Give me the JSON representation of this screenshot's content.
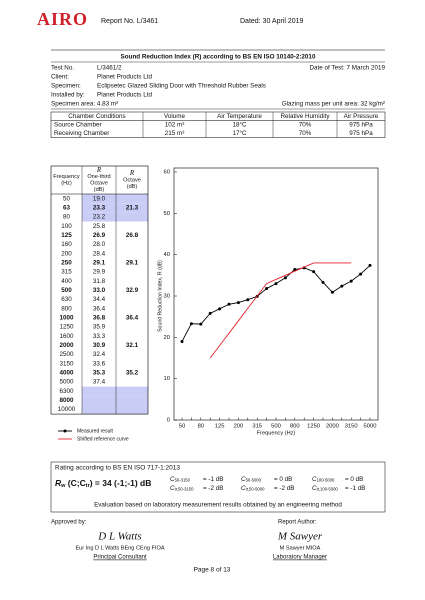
{
  "header": {
    "logo": "AIRO",
    "report_no": "Report No. L/3461",
    "dated": "Dated: 30 April 2019"
  },
  "title": "Sound Reduction Index (R) according to BS EN ISO 10140-2:2010",
  "info": {
    "test_no_label": "Test No.",
    "test_no": "L/3461/2",
    "date_of_test": "Date of Test: 7 March 2019",
    "client_label": "Client:",
    "client": "Planet Products Ltd",
    "specimen_label": "Specimen:",
    "specimen": "Eclipsetec Glazed Sliding Door with Threshold Rubber Seals",
    "installed_label": "Installed by:",
    "installed": "Planet Products Ltd",
    "area": "Specimen area: 4.83 m²",
    "mass": "Glazing mass per unit area: 32 kg/m²"
  },
  "chamber_table": {
    "headers": [
      "Chamber Conditions",
      "Volume",
      "Air Temperature",
      "Relative Humidity",
      "Air Pressure"
    ],
    "rows": [
      [
        "Source Chamber",
        "102 m³",
        "18°C",
        "70%",
        "975 hPa"
      ],
      [
        "Receiving Chamber",
        "215 m³",
        "17°C",
        "70%",
        "975 hPa"
      ]
    ]
  },
  "freq_table": {
    "headers": [
      [
        "Frequency",
        "(Hz)"
      ],
      [
        "R",
        "One-third",
        "Octave",
        "(dB)"
      ],
      [
        "R",
        "Octave",
        "(dB)"
      ]
    ],
    "rows": [
      [
        "50",
        "19.0",
        null
      ],
      [
        "63",
        "23.3",
        "21.3"
      ],
      [
        "80",
        "23.2",
        null
      ],
      [
        "100",
        "25.8",
        null
      ],
      [
        "125",
        "26.9",
        "26.8"
      ],
      [
        "160",
        "28.0",
        null
      ],
      [
        "200",
        "28.4",
        null
      ],
      [
        "250",
        "29.1",
        "29.1"
      ],
      [
        "315",
        "29.9",
        null
      ],
      [
        "400",
        "31.8",
        null
      ],
      [
        "500",
        "33.0",
        "32.9"
      ],
      [
        "630",
        "34.4",
        null
      ],
      [
        "800",
        "36.4",
        null
      ],
      [
        "1000",
        "36.8",
        "36.4"
      ],
      [
        "1250",
        "35.9",
        null
      ],
      [
        "1600",
        "33.3",
        null
      ],
      [
        "2000",
        "30.9",
        "32.1"
      ],
      [
        "2500",
        "32.4",
        null
      ],
      [
        "3150",
        "33.6",
        null
      ],
      [
        "4000",
        "35.3",
        "35.2"
      ],
      [
        "5000",
        "37.4",
        null
      ],
      [
        "6300",
        null,
        null
      ],
      [
        "8000",
        null,
        null
      ],
      [
        "10000",
        null,
        null
      ]
    ],
    "bold_rows": [
      1,
      4,
      7,
      10,
      13,
      16,
      19,
      22
    ],
    "shaded_rows": [
      0,
      1,
      2,
      21,
      22,
      23
    ],
    "shade_color": "#c9ccf5"
  },
  "chart_data": {
    "type": "line",
    "x_label": "Frequency (Hz)",
    "y_label": "Sound Reduction Index, R (dB)",
    "categories": [
      50,
      null,
      80,
      null,
      125,
      null,
      200,
      null,
      315,
      null,
      500,
      null,
      800,
      null,
      1250,
      null,
      2000,
      null,
      3150,
      null,
      5000
    ],
    "series": [
      {
        "name": "Measured result",
        "color": "#000000",
        "marker": true,
        "values": [
          19.0,
          23.3,
          23.2,
          25.8,
          26.9,
          28.0,
          28.4,
          29.1,
          29.9,
          31.8,
          33.0,
          34.4,
          36.4,
          36.8,
          35.9,
          33.3,
          30.9,
          32.4,
          33.6,
          35.3,
          37.4
        ]
      },
      {
        "name": "Shifted reference curve",
        "color": "#e8202a",
        "marker": false,
        "values": [
          null,
          null,
          null,
          15,
          18,
          21,
          24,
          27,
          30,
          33,
          34,
          35,
          36,
          37,
          38,
          38,
          38,
          38,
          38,
          null,
          null
        ]
      }
    ],
    "ylim": [
      0,
      60
    ],
    "yticks": [
      0,
      10,
      20,
      30,
      40,
      50,
      60
    ],
    "grid": false
  },
  "rating": {
    "heading": "Rating according to BS EN ISO 717-1:2013",
    "rw": {
      "symbol": "R",
      "sub": "w",
      "open": " (C;C",
      "open_sub": "tr",
      "rest": ") = 34 (-1;-1) dB"
    },
    "terms": [
      {
        "symbol": "C",
        "sub": "50-3150",
        "value": "= -1 dB"
      },
      {
        "symbol": "C",
        "sub": "50-5000",
        "value": "= 0 dB"
      },
      {
        "symbol": "C",
        "sub": "100-5000",
        "value": "= 0 dB"
      },
      {
        "symbol": "C",
        "sub": "tr,50-3150",
        "value": "= -2 dB"
      },
      {
        "symbol": "C",
        "sub": "tr,50-5000",
        "value": "= -2 dB"
      },
      {
        "symbol": "C",
        "sub": "tr,100-5000",
        "value": "= -1 dB"
      }
    ],
    "note": "Evaluation based on laboratory measurement results obtained by an engineering method"
  },
  "signatures": {
    "approved_label": "Approved by:",
    "approved_signature": "D L Watts",
    "approved_name": "Eur Ing D L Watts BEng CEng FIOA",
    "approved_role": "Principal Consultant",
    "author_label": "Report Author:",
    "author_signature": "M Sawyer",
    "author_name": "M Sawyer MIOA",
    "author_role": "Laboratory Manager"
  },
  "footer": "Page 8 of 13"
}
